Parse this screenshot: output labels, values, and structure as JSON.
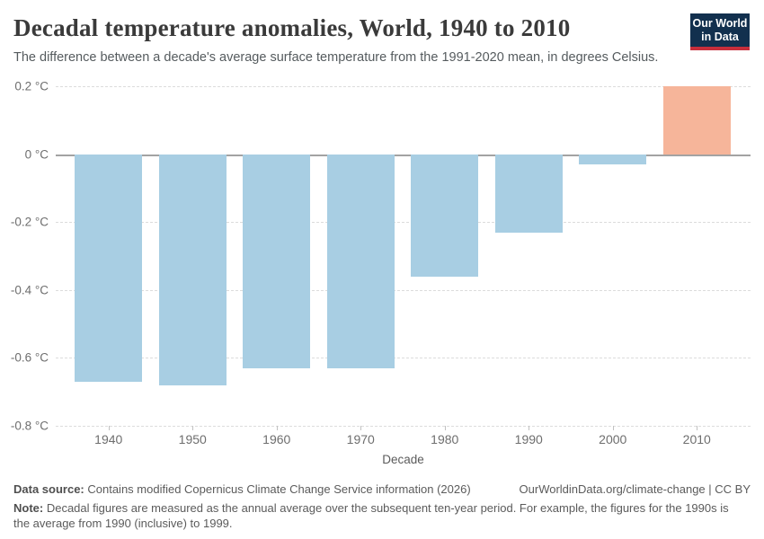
{
  "header": {
    "title": "Decadal temperature anomalies, World, 1940 to 2010",
    "subtitle": "The difference between a decade's average surface temperature from the 1991-2020 mean, in degrees Celsius.",
    "logo": {
      "line1": "Our World",
      "line2": "in Data",
      "bg_color": "#12304e",
      "stripe_color": "#c72e3b"
    }
  },
  "chart_data": {
    "type": "bar",
    "title": "Decadal temperature anomalies, World, 1940 to 2010",
    "categories": [
      "1940",
      "1950",
      "1960",
      "1970",
      "1980",
      "1990",
      "2000",
      "2010"
    ],
    "values": [
      -0.67,
      -0.68,
      -0.63,
      -0.63,
      -0.36,
      -0.23,
      -0.03,
      0.2
    ],
    "xlabel": "Decade",
    "ylabel": "",
    "ylim": [
      -0.8,
      0.2
    ],
    "yticks": [
      {
        "label": "0.2 °C",
        "value": 0.2
      },
      {
        "label": "0 °C",
        "value": 0
      },
      {
        "label": "-0.2 °C",
        "value": -0.2
      },
      {
        "label": "-0.4 °C",
        "value": -0.4
      },
      {
        "label": "-0.6 °C",
        "value": -0.6
      },
      {
        "label": "-0.8 °C",
        "value": -0.8
      }
    ],
    "grid": "horizontal-dashed",
    "legend": "none",
    "colors": {
      "negative": "#a8cee3",
      "positive": "#f6b59a"
    }
  },
  "footer": {
    "datasource_label": "Data source:",
    "datasource_text": " Contains modified Copernicus Climate Change Service information (2026)",
    "link": "OurWorldinData.org/climate-change | CC BY",
    "note_label": "Note:",
    "note_text": " Decadal figures are measured as the annual average over the subsequent ten-year period. For example, the figures for the 1990s is the average from 1990 (inclusive) to 1999."
  }
}
